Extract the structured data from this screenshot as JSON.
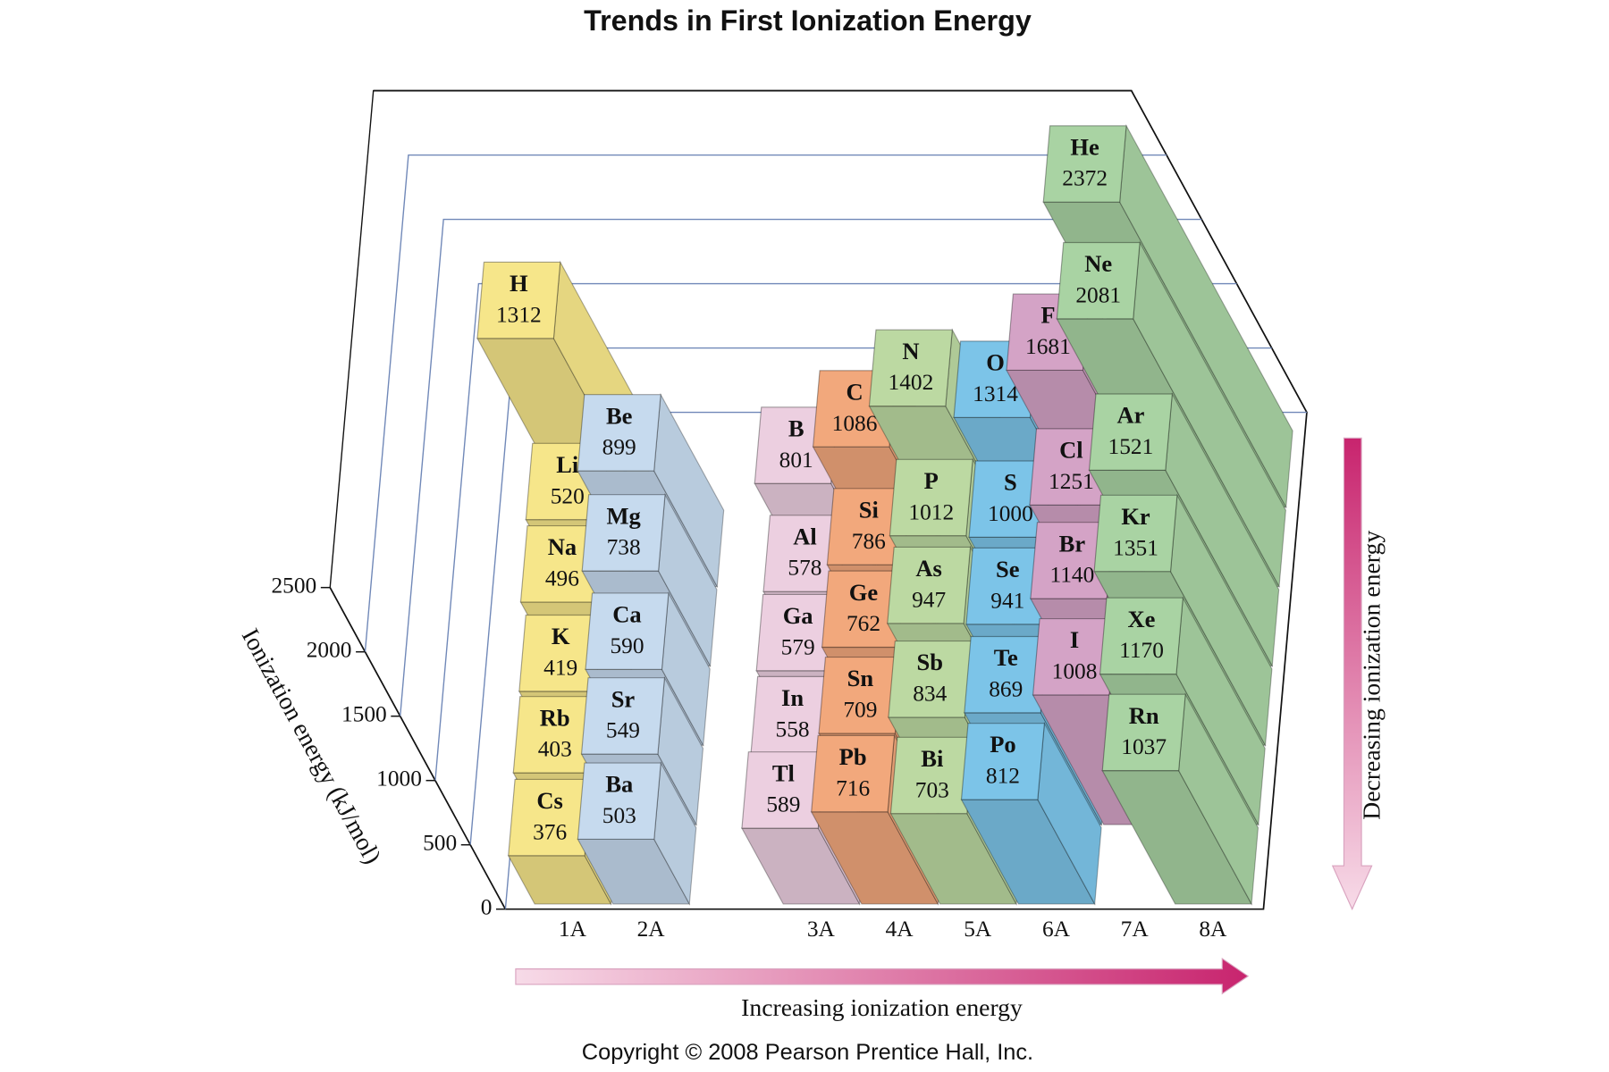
{
  "chart_data": {
    "type": "bar3d",
    "title": "Trends in First Ionization Energy",
    "y_label": "Ionization energy (kJ/mol)",
    "ylim": [
      0,
      2500
    ],
    "yticks": [
      0,
      500,
      1000,
      1500,
      2000,
      2500
    ],
    "categories": [
      "1A",
      "2A",
      "3A",
      "4A",
      "5A",
      "6A",
      "7A",
      "8A"
    ],
    "groups": [
      {
        "color": "#f6e68a",
        "symbols": [
          "H",
          "Li",
          "Na",
          "K",
          "Rb",
          "Cs"
        ],
        "values": [
          1312,
          520,
          496,
          419,
          403,
          376
        ]
      },
      {
        "color": "#c6daee",
        "symbols": [
          null,
          "Be",
          "Mg",
          "Ca",
          "Sr",
          "Ba"
        ],
        "values": [
          null,
          899,
          738,
          590,
          549,
          503
        ]
      },
      {
        "color": "#eccfe0",
        "symbols": [
          null,
          "B",
          "Al",
          "Ga",
          "In",
          "Tl"
        ],
        "values": [
          null,
          801,
          578,
          579,
          558,
          589
        ]
      },
      {
        "color": "#f2a87c",
        "symbols": [
          null,
          "C",
          "Si",
          "Ge",
          "Sn",
          "Pb"
        ],
        "values": [
          null,
          1086,
          786,
          762,
          709,
          716
        ]
      },
      {
        "color": "#bcd9a2",
        "symbols": [
          null,
          "N",
          "P",
          "As",
          "Sb",
          "Bi"
        ],
        "values": [
          null,
          1402,
          1012,
          947,
          834,
          703
        ]
      },
      {
        "color": "#7cc4e8",
        "symbols": [
          null,
          "O",
          "S",
          "Se",
          "Te",
          "Po"
        ],
        "values": [
          null,
          1314,
          1000,
          941,
          869,
          812
        ]
      },
      {
        "color": "#d4a3c6",
        "symbols": [
          null,
          "F",
          "Cl",
          "Br",
          "I",
          null
        ],
        "values": [
          null,
          1681,
          1251,
          1140,
          1008,
          null
        ]
      },
      {
        "color": "#a9d3a3",
        "symbols": [
          "He",
          "Ne",
          "Ar",
          "Kr",
          "Xe",
          "Rn"
        ],
        "values": [
          2372,
          2081,
          1521,
          1351,
          1170,
          1037
        ]
      }
    ],
    "annotations": [
      "Increasing ionization energy",
      "Decreasing ionization energy"
    ]
  },
  "footer": "Copyright © 2008 Pearson Prentice Hall, Inc."
}
